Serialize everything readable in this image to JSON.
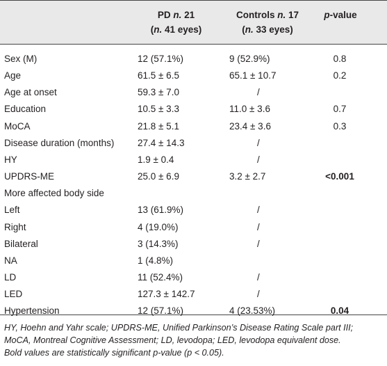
{
  "table": {
    "header": [
      {
        "line1": [
          "PD",
          "n.",
          "21"
        ],
        "line2": [
          "(",
          "n.",
          "41 eyes)"
        ]
      },
      {
        "line1": [
          "Controls",
          "n.",
          "17"
        ],
        "line2": [
          "(",
          "n.",
          "33 eyes)"
        ]
      },
      {
        "line1": [
          "p",
          "-value"
        ]
      }
    ],
    "rows": [
      {
        "label": "Sex (M)",
        "pd": "12 (57.1%)",
        "controls": "9 (52.9%)",
        "p": "0.8"
      },
      {
        "label": "Age",
        "pd": "61.5 ± 6.5",
        "controls": "65.1 ± 10.7",
        "p": "0.2"
      },
      {
        "label": "Age at onset",
        "pd": "59.3 ± 7.0",
        "controls": "/"
      },
      {
        "label": "Education",
        "pd": "10.5 ± 3.3",
        "controls": "11.0 ± 3.6",
        "p": "0.7"
      },
      {
        "label": "MoCA",
        "pd": "21.8 ± 5.1",
        "controls": "23.4 ± 3.6",
        "p": "0.3"
      },
      {
        "label": "Disease duration (months)",
        "pd": "27.4 ± 14.3",
        "controls": "/"
      },
      {
        "label": "HY",
        "pd": "1.9 ± 0.4",
        "controls": "/"
      },
      {
        "label": "UPDRS-ME",
        "pd": "25.0 ± 6.9",
        "controls": "3.2 ± 2.7",
        "p": "<0.001",
        "bold": true
      },
      {
        "label": "More affected body side"
      },
      {
        "label": "Left",
        "pd": "13 (61.9%)",
        "controls": "/"
      },
      {
        "label": "Right",
        "pd": "4 (19.0%)",
        "controls": "/"
      },
      {
        "label": "Bilateral",
        "pd": "3 (14.3%)",
        "controls": "/"
      },
      {
        "label": "NA",
        "pd": "1 (4.8%)"
      },
      {
        "label": "LD",
        "pd": "11 (52.4%)",
        "controls": "/"
      },
      {
        "label": "LED",
        "pd": "127.3 ± 142.7",
        "controls": "/"
      },
      {
        "label": "Hypertension",
        "pd": "12 (57.1%)",
        "controls": "4 (23.53%)",
        "p": "0.04",
        "bold": true
      }
    ],
    "footnote": [
      "HY, Hoehn and Yahr scale; UPDRS-ME, Unified Parkinson’s Disease Rating Scale part III;",
      "MoCA, Montreal Cognitive Assessment; LD, levodopa; LED, levodopa equivalent dose.",
      "Bold values are statistically significant p-value (p < 0.05)."
    ]
  }
}
